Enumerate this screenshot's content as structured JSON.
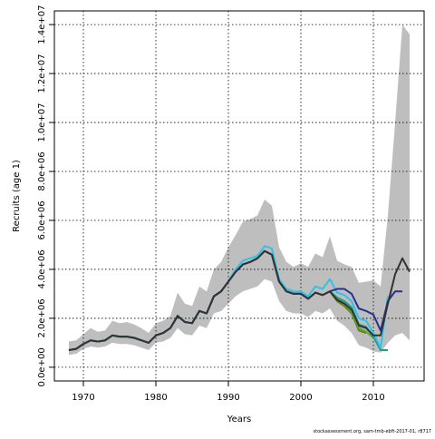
{
  "chart_data": {
    "type": "line",
    "ylabel": "Recruits (age 1)",
    "xlabel": "Years",
    "annotation": "stockassessment.org, sam-tmb-ebft-2017-01, r8717",
    "x": [
      1968,
      1969,
      1970,
      1971,
      1972,
      1973,
      1974,
      1975,
      1976,
      1977,
      1978,
      1979,
      1980,
      1981,
      1982,
      1983,
      1984,
      1985,
      1986,
      1987,
      1988,
      1989,
      1990,
      1991,
      1992,
      1993,
      1994,
      1995,
      1996,
      1997,
      1998,
      1999,
      2000,
      2001,
      2002,
      2003,
      2004,
      2005,
      2006,
      2007,
      2008,
      2009,
      2010,
      2011,
      2012,
      2013,
      2014,
      2015
    ],
    "band": {
      "color": "#bebebe",
      "lower": [
        500000,
        550000,
        750000,
        850000,
        800000,
        850000,
        1000000,
        950000,
        950000,
        900000,
        800000,
        700000,
        1000000,
        1050000,
        1200000,
        1600000,
        1350000,
        1300000,
        1700000,
        1600000,
        2200000,
        2300000,
        2600000,
        2900000,
        3100000,
        3200000,
        3300000,
        3600000,
        3500000,
        2700000,
        2300000,
        2200000,
        2200000,
        2050000,
        2300000,
        2200000,
        2400000,
        1900000,
        1700000,
        1400000,
        900000,
        800000,
        650000,
        600000,
        1000000,
        1300000,
        1400000,
        1100000
      ],
      "upper": [
        1050000,
        1100000,
        1350000,
        1600000,
        1450000,
        1500000,
        1900000,
        1800000,
        1850000,
        1750000,
        1600000,
        1400000,
        1800000,
        1900000,
        2100000,
        3050000,
        2600000,
        2500000,
        3300000,
        3100000,
        4000000,
        4300000,
        4900000,
        5400000,
        5950000,
        6050000,
        6200000,
        6850000,
        6600000,
        4900000,
        4300000,
        4100000,
        4250000,
        4100000,
        4650000,
        4500000,
        5350000,
        4350000,
        4200000,
        4100000,
        3450000,
        3500000,
        3550000,
        3300000,
        6200000,
        10000000,
        14000000,
        13600000
      ]
    },
    "series": [
      {
        "color": "#6b7d14",
        "values": [
          700000,
          750000,
          950000,
          1100000,
          1050000,
          1100000,
          1300000,
          1250000,
          1250000,
          1200000,
          1100000,
          1000000,
          1300000,
          1400000,
          1600000,
          2100000,
          1850000,
          1800000,
          2300000,
          2200000,
          2900000,
          3100000,
          3500000,
          3900000,
          4200000,
          4300000,
          4450000,
          4750000,
          4600000,
          3500000,
          3100000,
          3000000,
          3000000,
          2800000,
          3050000,
          2950000,
          3100000,
          2700000,
          2500000,
          2200000,
          1500000,
          1400000,
          null,
          null,
          null,
          null,
          null,
          null
        ]
      },
      {
        "color": "#5aa832",
        "values": [
          700000,
          750000,
          950000,
          1100000,
          1050000,
          1100000,
          1300000,
          1250000,
          1250000,
          1200000,
          1100000,
          1000000,
          1300000,
          1400000,
          1600000,
          2100000,
          1850000,
          1800000,
          2300000,
          2200000,
          2900000,
          3100000,
          3500000,
          3900000,
          4200000,
          4300000,
          4450000,
          4750000,
          4600000,
          3500000,
          3100000,
          3000000,
          3000000,
          2800000,
          3050000,
          2950000,
          3100000,
          2800000,
          2600000,
          2250000,
          1600000,
          1450000,
          1200000,
          null,
          null,
          null,
          null,
          null
        ]
      },
      {
        "color": "#239a8c",
        "values": [
          700000,
          750000,
          950000,
          1100000,
          1050000,
          1100000,
          1300000,
          1250000,
          1250000,
          1200000,
          1100000,
          1000000,
          1300000,
          1400000,
          1600000,
          2100000,
          1850000,
          1800000,
          2300000,
          2200000,
          2900000,
          3100000,
          3500000,
          3900000,
          4200000,
          4300000,
          4450000,
          4750000,
          4600000,
          3500000,
          3100000,
          3000000,
          3000000,
          2800000,
          3050000,
          2950000,
          3100000,
          2850000,
          2700000,
          2450000,
          1750000,
          1650000,
          1250000,
          700000,
          700000,
          null,
          null,
          null
        ]
      },
      {
        "color": "#33c1e8",
        "values": [
          700000,
          750000,
          950000,
          1100000,
          1050000,
          1100000,
          1300000,
          1250000,
          1250000,
          1200000,
          1100000,
          1000000,
          1300000,
          1400000,
          1600000,
          2100000,
          1850000,
          1800000,
          2300000,
          2200000,
          2900000,
          3100000,
          3500000,
          4000000,
          4350000,
          4450000,
          4550000,
          4950000,
          4850000,
          3600000,
          3200000,
          3100000,
          3100000,
          2900000,
          3300000,
          3200000,
          3600000,
          3050000,
          2950000,
          2700000,
          2000000,
          1900000,
          1400000,
          800000,
          2900000,
          null,
          null,
          null
        ]
      },
      {
        "color": "#2b2f8f",
        "values": [
          700000,
          750000,
          950000,
          1100000,
          1050000,
          1100000,
          1300000,
          1250000,
          1250000,
          1200000,
          1100000,
          1000000,
          1300000,
          1400000,
          1600000,
          2100000,
          1850000,
          1800000,
          2300000,
          2200000,
          2900000,
          3100000,
          3500000,
          3900000,
          4200000,
          4300000,
          4450000,
          4750000,
          4600000,
          3500000,
          3100000,
          3000000,
          3000000,
          2800000,
          3050000,
          2950000,
          3100000,
          3200000,
          3200000,
          3000000,
          2400000,
          2300000,
          2150000,
          1500000,
          2700000,
          3100000,
          3100000,
          null
        ]
      },
      {
        "color": "#333333",
        "values": [
          700000,
          750000,
          950000,
          1100000,
          1050000,
          1100000,
          1300000,
          1250000,
          1250000,
          1200000,
          1100000,
          1000000,
          1300000,
          1400000,
          1600000,
          2100000,
          1850000,
          1800000,
          2300000,
          2200000,
          2900000,
          3100000,
          3500000,
          3900000,
          4200000,
          4300000,
          4450000,
          4750000,
          4600000,
          3500000,
          3100000,
          3000000,
          3000000,
          2800000,
          3050000,
          2950000,
          3100000,
          2750000,
          2600000,
          2350000,
          1700000,
          1600000,
          1300000,
          1300000,
          2600000,
          3800000,
          4450000,
          3900000
        ]
      }
    ],
    "xlim": [
      1966,
      2017
    ],
    "xticks": [
      1970,
      1980,
      1990,
      2000,
      2010
    ],
    "ylim": [
      -560000,
      14560000
    ],
    "yticks": [
      {
        "value": 0,
        "label": "0.0e+00"
      },
      {
        "value": 2000000,
        "label": "2.0e+06"
      },
      {
        "value": 4000000,
        "label": "4.0e+06"
      },
      {
        "value": 6000000,
        "label": "6.0e+06"
      },
      {
        "value": 8000000,
        "label": "8.0e+06"
      },
      {
        "value": 10000000,
        "label": "1.0e+07"
      },
      {
        "value": 12000000,
        "label": "1.2e+07"
      },
      {
        "value": 14000000,
        "label": "1.4e+07"
      }
    ],
    "grid": true
  }
}
